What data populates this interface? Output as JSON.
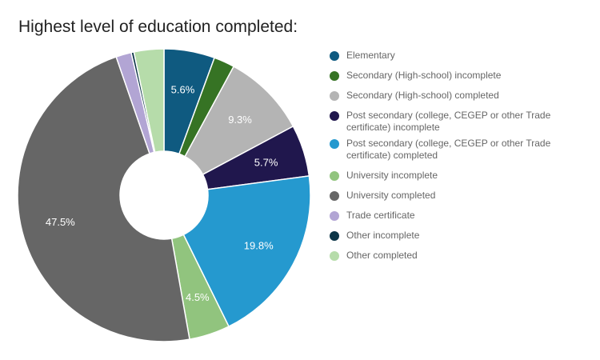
{
  "chart_data": {
    "type": "pie",
    "title": "Highest level of education completed:",
    "donut": true,
    "legend_position": "right",
    "categories": [
      "Elementary",
      "Secondary (High-school) incomplete",
      "Secondary (High-school) completed",
      "Post secondary (college, CEGEP or other Trade certificate) incomplete",
      "Post secondary (college, CEGEP or other Trade certificate) completed",
      "University incomplete",
      "University completed",
      "Trade certificate",
      "Other incomplete",
      "Other completed"
    ],
    "values": [
      5.6,
      2.3,
      9.3,
      5.7,
      19.8,
      4.5,
      47.5,
      1.7,
      0.3,
      3.3
    ],
    "labels": [
      "5.6%",
      "",
      "9.3%",
      "5.7%",
      "19.8%",
      "4.5%",
      "47.5%",
      "",
      "",
      ""
    ],
    "colors": [
      "#0f5a80",
      "#367324",
      "#b4b4b4",
      "#20174d",
      "#2599cf",
      "#91c47e",
      "#666666",
      "#b2a5d4",
      "#0c3547",
      "#b6dcaa"
    ]
  }
}
